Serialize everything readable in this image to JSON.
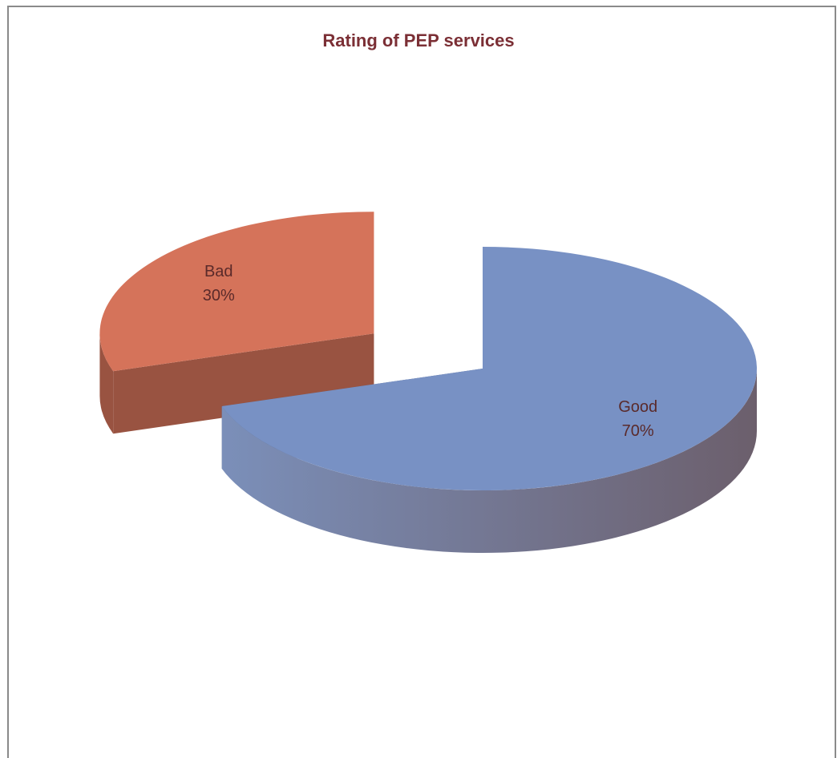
{
  "chart_data": {
    "type": "pie3d",
    "title": "Rating of PEP services",
    "categories": [
      "Good",
      "Bad"
    ],
    "values": [
      70,
      30
    ],
    "value_labels": [
      "70%",
      "30%"
    ],
    "colors": [
      "#7891c4",
      "#d5735a"
    ],
    "explode": [
      false,
      true
    ]
  }
}
